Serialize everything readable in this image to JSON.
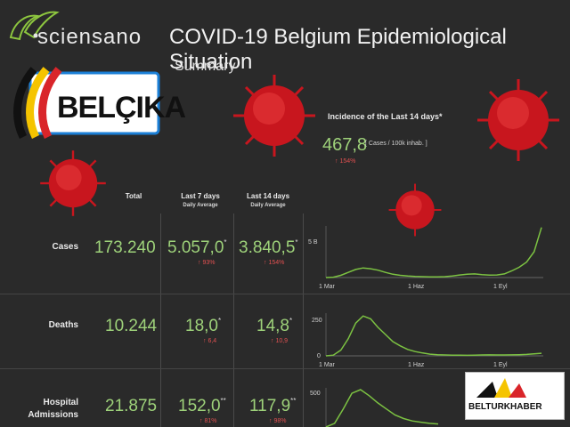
{
  "header": {
    "logo_text": "sciensano",
    "title": "COVID-19 Belgium Epidemiological Situation",
    "subtitle": "Summary"
  },
  "badge": {
    "label": "BELÇIKA"
  },
  "incidence": {
    "title": "Incidence of the Last 14 days*",
    "value": "467,8",
    "unit": "[ Cases / 100k inhab. ]",
    "change": "↑ 154%"
  },
  "columns": {
    "total": "Total",
    "last7": "Last 7 days",
    "last7_sub": "Daily Average",
    "last14": "Last 14 days",
    "last14_sub": "Daily Average"
  },
  "rows": [
    {
      "label": "Cases",
      "total": "173.240",
      "avg7": "5.057,0",
      "avg7_mark": "*",
      "chg7": "↑ 93%",
      "avg14": "3.840,5",
      "avg14_mark": "*",
      "chg14": "↑ 154%"
    },
    {
      "label": "Deaths",
      "total": "10.244",
      "avg7": "18,0",
      "avg7_mark": "*",
      "chg7": "↑ 6,4",
      "avg14": "14,8",
      "avg14_mark": "*",
      "chg14": "↑ 10,9"
    },
    {
      "label": "Hospital Admissions",
      "total": "21.875",
      "avg7": "152,0",
      "avg7_mark": "**",
      "chg7": "↑ 81%",
      "avg14": "117,9",
      "avg14_mark": "**",
      "chg14": "↑ 98%"
    }
  ],
  "charts": {
    "x_ticks": [
      "1 Mar",
      "1 Haz",
      "1 Eyl"
    ],
    "cases_ymax": "5 B",
    "deaths_ymax": "250",
    "deaths_ymin": "0",
    "hosp_ymax": "500"
  },
  "chart_data": [
    {
      "type": "line",
      "name": "cases",
      "ylim": [
        0,
        7000
      ],
      "y": [
        0,
        50,
        300,
        700,
        1100,
        1300,
        1200,
        1000,
        700,
        450,
        300,
        200,
        150,
        120,
        100,
        100,
        120,
        200,
        350,
        450,
        500,
        400,
        320,
        350,
        500,
        900,
        1400,
        2100,
        3500,
        6800
      ]
    },
    {
      "type": "line",
      "name": "deaths",
      "ylim": [
        0,
        300
      ],
      "y": [
        0,
        5,
        40,
        120,
        230,
        280,
        260,
        200,
        150,
        100,
        70,
        45,
        30,
        20,
        12,
        8,
        6,
        5,
        5,
        4,
        5,
        6,
        7,
        6,
        6,
        7,
        8,
        10,
        14,
        18
      ]
    },
    {
      "type": "line",
      "name": "hospital",
      "ylim": [
        0,
        650
      ],
      "y": [
        0,
        60,
        300,
        560,
        620,
        520,
        400,
        300,
        200,
        140,
        100,
        80,
        60,
        50
      ]
    }
  ],
  "watermark": {
    "label": "BELTURKHABER"
  },
  "colors": {
    "accent": "#9ed27a",
    "negative": "#e05050",
    "virus": "#c8161e"
  }
}
